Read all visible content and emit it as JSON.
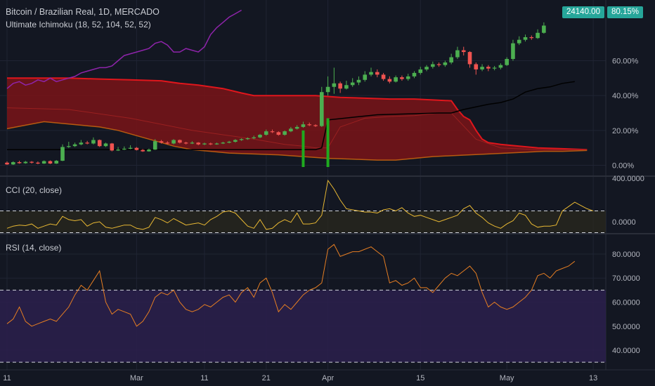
{
  "header": {
    "symbol_line": "Bitcoin / Brazilian Real, 1D, MERCADO",
    "indicator_line": "Ultimate Ichimoku (18, 52, 104, 52, 52)",
    "cci_label": "CCI (20, close)",
    "rsi_label": "RSI (14, close)"
  },
  "badges": {
    "last_price": "24140.00",
    "last_pct": "80.15%"
  },
  "colors": {
    "background": "#131722",
    "up": "#4caf50",
    "down": "#ef5350",
    "cloud_fill": "#7a1418",
    "cloud_edge": "#e0161c",
    "chikou": "#8e24aa",
    "kijun": "#000000",
    "volume_up": "#1faa1f",
    "cci_line": "#e8b833",
    "rsi_line": "#e67e22",
    "rsi_band": "#2a1f4a",
    "badge": "#26a69a"
  },
  "chart_data": [
    {
      "type": "candlestick",
      "name": "price",
      "y_unit": "%",
      "ylim": [
        -1,
        90
      ],
      "y_ticks": [
        "0.00%",
        "20.00%",
        "40.00%",
        "60.00%"
      ],
      "y_tick_values": [
        0,
        20,
        40,
        60
      ],
      "x_ticks": [
        "11",
        "Mar",
        "11",
        "21",
        "Apr",
        "15",
        "May",
        "13"
      ],
      "x_tick_index": [
        0,
        21,
        32,
        42,
        52,
        67,
        81,
        95
      ],
      "candles": [
        [
          1.5,
          0.5,
          2.2,
          0.2
        ],
        [
          0.5,
          1.8,
          2.3,
          0.2
        ],
        [
          1.8,
          1.2,
          2.6,
          0.9
        ],
        [
          1.2,
          2.0,
          2.5,
          0.9
        ],
        [
          2.0,
          1.5,
          2.4,
          1.0
        ],
        [
          1.5,
          1.0,
          2.2,
          0.6
        ],
        [
          1.0,
          2.4,
          2.8,
          0.8
        ],
        [
          2.4,
          1.0,
          2.8,
          0.7
        ],
        [
          1.0,
          2.6,
          3.0,
          0.8
        ],
        [
          2.6,
          10.5,
          12.0,
          2.4
        ],
        [
          10.5,
          11.0,
          13.5,
          10.0
        ],
        [
          11.0,
          12.0,
          13.0,
          10.5
        ],
        [
          12.0,
          13.0,
          14.5,
          11.5
        ],
        [
          13.0,
          12.5,
          14.0,
          12.0
        ],
        [
          12.5,
          14.5,
          16.0,
          12.0
        ],
        [
          14.5,
          11.0,
          14.8,
          10.5
        ],
        [
          11.0,
          12.5,
          13.0,
          10.5
        ],
        [
          12.5,
          8.5,
          12.8,
          8.0
        ],
        [
          8.5,
          9.0,
          10.5,
          8.2
        ],
        [
          9.0,
          9.5,
          10.8,
          8.8
        ],
        [
          9.5,
          10.0,
          11.5,
          9.2
        ],
        [
          10.0,
          8.8,
          10.5,
          8.5
        ],
        [
          8.8,
          8.0,
          9.3,
          7.7
        ],
        [
          8.0,
          9.0,
          9.6,
          7.8
        ],
        [
          9.0,
          13.8,
          15.0,
          8.8
        ],
        [
          13.8,
          13.0,
          14.5,
          12.5
        ],
        [
          13.0,
          12.5,
          13.8,
          12.0
        ],
        [
          12.5,
          14.5,
          15.0,
          12.0
        ],
        [
          14.5,
          13.0,
          14.8,
          12.5
        ],
        [
          13.0,
          12.5,
          13.5,
          12.0
        ],
        [
          12.5,
          13.0,
          13.8,
          12.2
        ],
        [
          13.0,
          12.0,
          13.3,
          11.5
        ],
        [
          12.0,
          12.5,
          13.0,
          11.6
        ],
        [
          12.5,
          12.0,
          13.0,
          11.6
        ],
        [
          12.0,
          12.5,
          13.0,
          11.8
        ],
        [
          12.5,
          13.0,
          13.5,
          12.2
        ],
        [
          13.0,
          13.5,
          14.0,
          12.6
        ],
        [
          13.5,
          14.5,
          15.0,
          13.0
        ],
        [
          14.5,
          15.0,
          15.5,
          14.0
        ],
        [
          15.0,
          15.5,
          16.0,
          14.6
        ],
        [
          15.5,
          16.0,
          17.0,
          15.0
        ],
        [
          16.0,
          17.5,
          18.0,
          15.5
        ],
        [
          17.5,
          19.5,
          20.5,
          17.0
        ],
        [
          19.5,
          19.0,
          20.5,
          18.5
        ],
        [
          19.0,
          17.5,
          19.5,
          17.0
        ],
        [
          17.5,
          19.5,
          20.0,
          17.0
        ],
        [
          19.5,
          21.0,
          22.0,
          19.0
        ],
        [
          21.0,
          22.0,
          23.0,
          20.5
        ],
        [
          22.0,
          23.5,
          25.0,
          21.5
        ],
        [
          23.5,
          23.0,
          24.5,
          22.5
        ],
        [
          23.0,
          22.5,
          23.5,
          22.0
        ],
        [
          22.5,
          42.0,
          45.0,
          22.0
        ],
        [
          42.0,
          45.0,
          51.0,
          40.0
        ],
        [
          45.0,
          47.0,
          56.0,
          41.0
        ],
        [
          47.0,
          44.0,
          48.0,
          41.5
        ],
        [
          44.0,
          46.0,
          48.5,
          43.5
        ],
        [
          46.0,
          47.5,
          50.0,
          45.0
        ],
        [
          47.5,
          49.0,
          51.0,
          46.0
        ],
        [
          49.0,
          52.0,
          54.0,
          48.0
        ],
        [
          52.0,
          53.5,
          56.0,
          51.0
        ],
        [
          53.5,
          52.0,
          55.0,
          50.5
        ],
        [
          52.0,
          49.5,
          53.0,
          48.5
        ],
        [
          49.5,
          48.0,
          51.0,
          47.0
        ],
        [
          48.0,
          50.5,
          51.5,
          47.5
        ],
        [
          50.5,
          49.5,
          51.5,
          48.5
        ],
        [
          49.5,
          51.0,
          52.5,
          48.5
        ],
        [
          51.0,
          53.0,
          54.0,
          50.0
        ],
        [
          53.0,
          55.0,
          56.5,
          52.0
        ],
        [
          55.0,
          56.5,
          57.5,
          54.0
        ],
        [
          56.5,
          58.0,
          59.5,
          55.5
        ],
        [
          58.0,
          57.5,
          59.0,
          56.5
        ],
        [
          57.5,
          59.0,
          60.0,
          56.5
        ],
        [
          59.0,
          62.0,
          64.0,
          58.0
        ],
        [
          62.0,
          66.0,
          68.0,
          61.0
        ],
        [
          66.0,
          65.0,
          68.0,
          63.0
        ],
        [
          65.0,
          58.0,
          65.5,
          56.0
        ],
        [
          58.0,
          55.0,
          59.0,
          52.0
        ],
        [
          55.0,
          56.5,
          58.0,
          54.0
        ],
        [
          56.5,
          55.5,
          57.5,
          54.0
        ],
        [
          55.5,
          56.0,
          57.0,
          54.5
        ],
        [
          56.0,
          57.5,
          58.5,
          55.0
        ],
        [
          57.5,
          61.0,
          62.0,
          57.0
        ],
        [
          61.0,
          70.0,
          72.0,
          60.0
        ],
        [
          70.0,
          72.0,
          74.0,
          69.0
        ],
        [
          72.0,
          73.5,
          75.0,
          71.0
        ],
        [
          73.5,
          73.0,
          74.5,
          72.0
        ],
        [
          73.0,
          76.0,
          78.0,
          72.5
        ],
        [
          76.0,
          80.15,
          82.0,
          75.5
        ]
      ],
      "chikou": [
        [
          0,
          44
        ],
        [
          1,
          47
        ],
        [
          2,
          48
        ],
        [
          3,
          46
        ],
        [
          4,
          47
        ],
        [
          5,
          49
        ],
        [
          6,
          48
        ],
        [
          7,
          50
        ],
        [
          8,
          48
        ],
        [
          9,
          49
        ],
        [
          10,
          50
        ],
        [
          11,
          51
        ],
        [
          12,
          53
        ],
        [
          13,
          54
        ],
        [
          14,
          55
        ],
        [
          15,
          56
        ],
        [
          16,
          56
        ],
        [
          17,
          57
        ],
        [
          18,
          60
        ],
        [
          19,
          63
        ],
        [
          20,
          64
        ],
        [
          21,
          65
        ],
        [
          22,
          66
        ],
        [
          23,
          67
        ],
        [
          24,
          70
        ],
        [
          25,
          71
        ],
        [
          26,
          69
        ],
        [
          27,
          65
        ],
        [
          28,
          65
        ],
        [
          29,
          67
        ],
        [
          30,
          66
        ],
        [
          31,
          65
        ],
        [
          32,
          68
        ],
        [
          33,
          75
        ],
        [
          34,
          79
        ],
        [
          35,
          82
        ],
        [
          36,
          85
        ],
        [
          37,
          87
        ],
        [
          38,
          89
        ]
      ],
      "cloud_top": [
        [
          0,
          50
        ],
        [
          5,
          50
        ],
        [
          10,
          50
        ],
        [
          15,
          49.5
        ],
        [
          20,
          49
        ],
        [
          25,
          48.5
        ],
        [
          28,
          47
        ],
        [
          31,
          46
        ],
        [
          35,
          44
        ],
        [
          38,
          41.5
        ],
        [
          40,
          40
        ],
        [
          45,
          40
        ],
        [
          50,
          40
        ],
        [
          54,
          39
        ],
        [
          58,
          38.5
        ],
        [
          62,
          38
        ],
        [
          66,
          38
        ],
        [
          69,
          37.5
        ],
        [
          72,
          37
        ],
        [
          73,
          32
        ],
        [
          74,
          28
        ],
        [
          75,
          26
        ],
        [
          76,
          20
        ],
        [
          77,
          15
        ],
        [
          78,
          13
        ],
        [
          80,
          12
        ],
        [
          83,
          11
        ],
        [
          86,
          10
        ],
        [
          90,
          9.5
        ],
        [
          94,
          9
        ]
      ],
      "cloud_bottom": [
        [
          0,
          21
        ],
        [
          3,
          23
        ],
        [
          6,
          25
        ],
        [
          9,
          24
        ],
        [
          12,
          23
        ],
        [
          15,
          22
        ],
        [
          18,
          20
        ],
        [
          21,
          17
        ],
        [
          24,
          14
        ],
        [
          27,
          11
        ],
        [
          30,
          9
        ],
        [
          33,
          8
        ],
        [
          36,
          7
        ],
        [
          40,
          6.5
        ],
        [
          44,
          6
        ],
        [
          48,
          5
        ],
        [
          52,
          4
        ],
        [
          56,
          3.5
        ],
        [
          60,
          3
        ],
        [
          63,
          3
        ],
        [
          66,
          4
        ],
        [
          69,
          5
        ],
        [
          72,
          5.5
        ],
        [
          75,
          6
        ],
        [
          78,
          6.5
        ],
        [
          81,
          7
        ],
        [
          84,
          7.5
        ],
        [
          87,
          8
        ],
        [
          90,
          8
        ],
        [
          94,
          8.5
        ]
      ],
      "cloud_mid": [
        [
          0,
          33
        ],
        [
          10,
          32
        ],
        [
          20,
          27
        ],
        [
          30,
          20
        ],
        [
          40,
          15
        ],
        [
          45,
          12
        ],
        [
          48,
          11
        ],
        [
          50,
          10
        ],
        [
          52,
          10
        ],
        [
          54,
          22
        ],
        [
          58,
          27
        ],
        [
          62,
          28
        ],
        [
          66,
          28.5
        ],
        [
          70,
          30
        ],
        [
          72,
          30
        ],
        [
          76,
          15
        ],
        [
          80,
          10
        ],
        [
          86,
          9
        ],
        [
          94,
          9
        ]
      ],
      "kijun": [
        [
          0,
          9
        ],
        [
          8,
          9
        ],
        [
          9,
          9
        ],
        [
          15,
          9
        ],
        [
          25,
          9
        ],
        [
          40,
          9
        ],
        [
          50,
          9
        ],
        [
          51,
          10
        ],
        [
          52,
          26
        ],
        [
          60,
          29
        ],
        [
          70,
          30
        ],
        [
          72,
          30
        ],
        [
          74,
          32
        ],
        [
          78,
          35
        ],
        [
          80,
          36
        ],
        [
          82,
          38
        ],
        [
          84,
          42
        ],
        [
          86,
          44
        ],
        [
          88,
          45
        ],
        [
          90,
          47
        ],
        [
          92,
          48
        ]
      ],
      "volume_spikes": [
        [
          48,
          -1,
          20
        ],
        [
          52,
          -1,
          27
        ]
      ]
    },
    {
      "type": "line",
      "name": "CCI",
      "ylim": [
        -90,
        400
      ],
      "y_ticks": [
        "400.0000",
        "0.0000"
      ],
      "y_tick_values": [
        400,
        0
      ],
      "levels": [
        100,
        -100
      ],
      "values": [
        -60,
        -40,
        -30,
        -35,
        -20,
        -60,
        -40,
        -20,
        -30,
        50,
        20,
        10,
        20,
        -40,
        -10,
        0,
        -50,
        -60,
        -45,
        -30,
        -30,
        -60,
        -70,
        -50,
        40,
        20,
        -10,
        30,
        0,
        -30,
        -20,
        -10,
        -30,
        20,
        50,
        90,
        100,
        80,
        20,
        -40,
        -60,
        20,
        -70,
        -60,
        -10,
        20,
        -5,
        80,
        -20,
        -20,
        -10,
        60,
        380,
        300,
        200,
        120,
        110,
        100,
        90,
        90,
        80,
        110,
        120,
        100,
        130,
        80,
        50,
        60,
        40,
        20,
        0,
        20,
        40,
        60,
        120,
        150,
        80,
        40,
        -10,
        -40,
        -60,
        -20,
        10,
        80,
        60,
        -20,
        -50,
        -40,
        -40,
        -30,
        100,
        140,
        180,
        150,
        120,
        100
      ]
    },
    {
      "type": "line",
      "name": "RSI",
      "ylim": [
        33,
        87
      ],
      "y_ticks": [
        "80.0000",
        "70.0000",
        "60.0000",
        "50.0000",
        "40.0000"
      ],
      "y_tick_values": [
        80,
        70,
        60,
        50,
        40
      ],
      "levels": [
        65,
        35
      ],
      "values": [
        51,
        53,
        58,
        52,
        50,
        51,
        52,
        53,
        52,
        55,
        58,
        63,
        67,
        65,
        69,
        73,
        60,
        55,
        57,
        56,
        55,
        50,
        52,
        56,
        62,
        64,
        63,
        65,
        60,
        57,
        56,
        57,
        59,
        58,
        60,
        62,
        63,
        60,
        64,
        66,
        62,
        68,
        70,
        64,
        56,
        59,
        57,
        60,
        63,
        65,
        66,
        68,
        82,
        84,
        79,
        80,
        81,
        81,
        82,
        83,
        81,
        79,
        68,
        69,
        67,
        68,
        70,
        66,
        66,
        64,
        67,
        70,
        72,
        71,
        73,
        75,
        72,
        64,
        58,
        60,
        58,
        57,
        58,
        60,
        62,
        65,
        71,
        72,
        70,
        73,
        74,
        75,
        77
      ]
    }
  ]
}
